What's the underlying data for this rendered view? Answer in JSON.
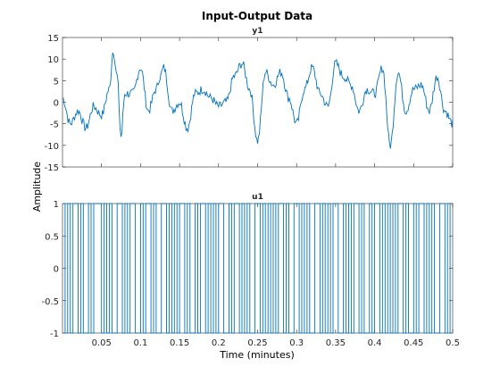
{
  "figure": {
    "title": "Input-Output Data",
    "colors": {
      "line": "#0072BD",
      "axes": "#262626",
      "background": "#ffffff"
    }
  },
  "chart_data": [
    {
      "type": "line",
      "title": "y1",
      "xlabel": "Time (minutes)",
      "ylabel": "Amplitude",
      "xlim": [
        0,
        0.5
      ],
      "ylim": [
        -15,
        15
      ],
      "xticks": [
        0.05,
        0.1,
        0.15,
        0.2,
        0.25,
        0.3,
        0.35,
        0.4,
        0.45,
        0.5
      ],
      "yticks": [
        -15,
        -10,
        -5,
        0,
        5,
        10,
        15
      ],
      "grid": false,
      "series": [
        {
          "x": [
            0,
            0.01,
            0.02,
            0.03,
            0.04,
            0.05,
            0.06,
            0.065,
            0.07,
            0.075,
            0.08,
            0.09,
            0.1,
            0.11,
            0.12,
            0.125,
            0.13,
            0.14,
            0.15,
            0.16,
            0.17,
            0.18,
            0.19,
            0.2,
            0.21,
            0.22,
            0.23,
            0.24,
            0.25,
            0.26,
            0.27,
            0.28,
            0.29,
            0.3,
            0.31,
            0.32,
            0.33,
            0.34,
            0.35,
            0.36,
            0.37,
            0.38,
            0.39,
            0.4,
            0.41,
            0.42,
            0.43,
            0.44,
            0.45,
            0.46,
            0.47,
            0.48,
            0.49,
            0.5
          ],
          "y": [
            1,
            -5,
            -2,
            -6,
            -1,
            -3,
            3,
            12,
            6,
            -8,
            2,
            2,
            8,
            -2,
            3,
            6,
            8,
            -2,
            0,
            -6,
            2,
            3,
            1,
            -1,
            0,
            6,
            9,
            3,
            -9,
            7,
            4,
            7,
            1,
            -5,
            3,
            8,
            2,
            -1,
            9,
            6,
            4,
            -2,
            3,
            2,
            8,
            -10,
            7,
            -2,
            3,
            4,
            -2,
            6,
            -2,
            -5
          ]
        }
      ]
    },
    {
      "type": "line",
      "title": "u1",
      "xlabel": "Time (minutes)",
      "ylabel": "Amplitude",
      "xlim": [
        0,
        0.5
      ],
      "ylim": [
        -1,
        1
      ],
      "xticks": [
        0.05,
        0.1,
        0.15,
        0.2,
        0.25,
        0.3,
        0.35,
        0.4,
        0.45,
        0.5
      ],
      "xtick_labels": [
        "0.05",
        "0.1",
        "0.15",
        "0.2",
        "0.25",
        "0.3",
        "0.35",
        "0.4",
        "0.45",
        "0.5"
      ],
      "yticks": [
        -1,
        -0.5,
        0,
        0.5,
        1
      ],
      "grid": false,
      "series": [
        {
          "step_values": [
            1,
            -1,
            1,
            -1,
            1,
            1,
            -1,
            1,
            -1,
            -1,
            1,
            -1,
            1,
            1,
            1,
            -1,
            1,
            -1,
            1,
            -1,
            -1,
            1,
            1,
            -1,
            1,
            -1,
            1,
            1,
            -1,
            -1,
            1,
            -1,
            1,
            1,
            -1,
            1,
            -1,
            -1,
            1,
            1,
            -1,
            1,
            -1,
            1,
            -1,
            1,
            1,
            -1,
            1,
            -1,
            -1,
            1,
            -1,
            1,
            1,
            -1,
            1,
            -1,
            1,
            -1,
            1,
            1,
            -1,
            -1,
            1,
            -1,
            1,
            1,
            -1,
            1,
            -1,
            1,
            -1,
            -1,
            1,
            1,
            -1,
            1,
            -1,
            1,
            -1,
            1,
            -1,
            1,
            1,
            -1,
            1,
            -1,
            -1,
            1,
            1,
            -1,
            1,
            -1,
            1,
            -1,
            -1,
            1,
            1,
            -1,
            1,
            -1,
            1,
            -1,
            1,
            1,
            -1,
            -1,
            1,
            -1,
            1,
            -1,
            1,
            1,
            -1,
            1,
            -1,
            -1,
            1,
            -1,
            1,
            1,
            -1,
            1,
            -1,
            1,
            -1,
            1,
            -1,
            1,
            1,
            -1,
            1,
            -1,
            -1,
            1,
            -1,
            1,
            1,
            -1,
            1,
            -1,
            1,
            -1,
            -1,
            1,
            1,
            -1,
            1,
            -1
          ],
          "x_start": 0,
          "x_end": 0.5
        }
      ]
    }
  ]
}
